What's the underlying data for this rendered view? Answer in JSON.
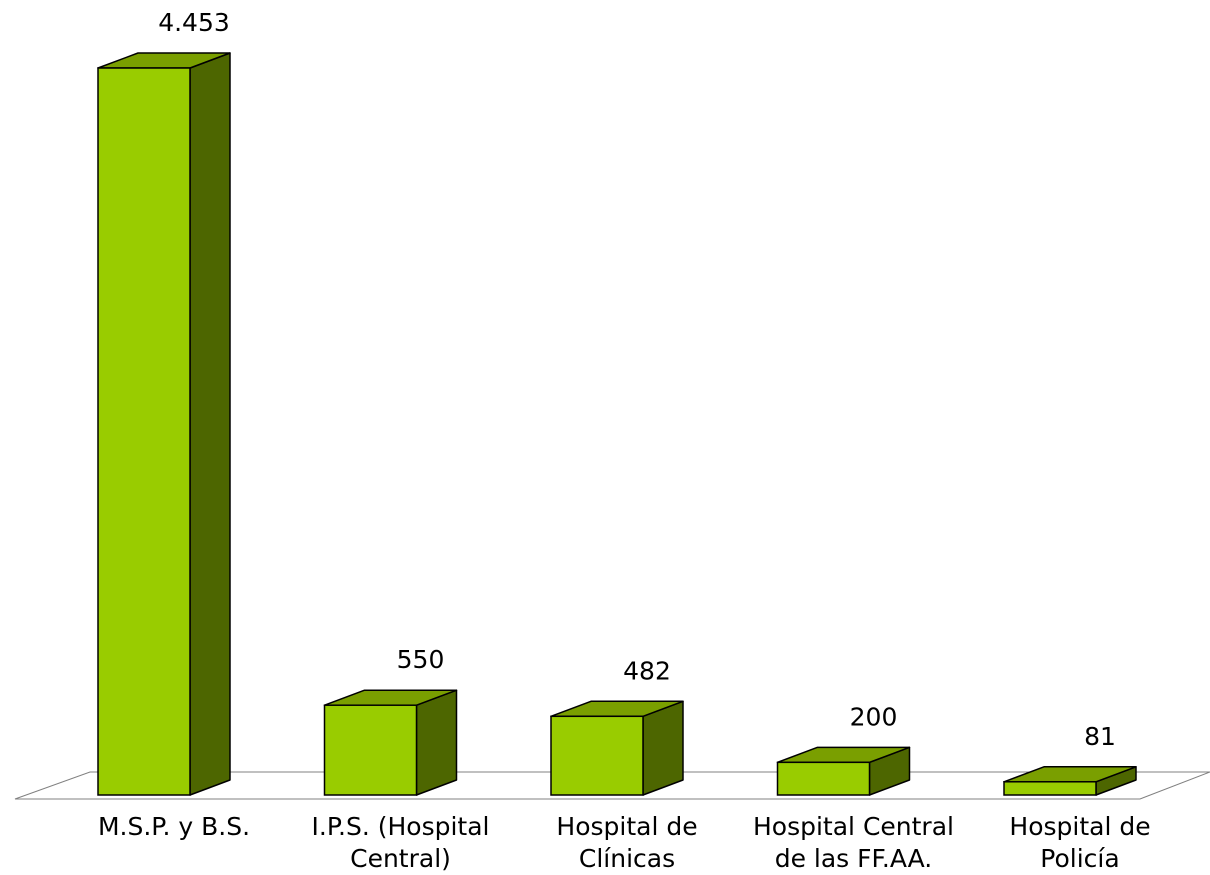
{
  "chart_data": {
    "type": "bar",
    "title": "",
    "xlabel": "",
    "ylabel": "",
    "categories": [
      [
        "M.S.P. y B.S."
      ],
      [
        "I.P.S.  (Hospital",
        "Central)"
      ],
      [
        "Hospital de",
        "Clínicas"
      ],
      [
        "Hospital Central",
        "de las FF.AA."
      ],
      [
        "Hospital de",
        "Policía"
      ]
    ],
    "values": [
      4453,
      550,
      482,
      200,
      81
    ],
    "value_labels": [
      "4.453",
      "550",
      "482",
      "200",
      "81"
    ],
    "ylim": [
      0,
      4453
    ],
    "grid": false,
    "legend": "none",
    "style": "3d-column"
  },
  "colors": {
    "bar_front": "#99cc00",
    "bar_top": "#7a9f00",
    "bar_side": "#4d6600",
    "outline": "#000000",
    "floor_line": "#808080"
  }
}
